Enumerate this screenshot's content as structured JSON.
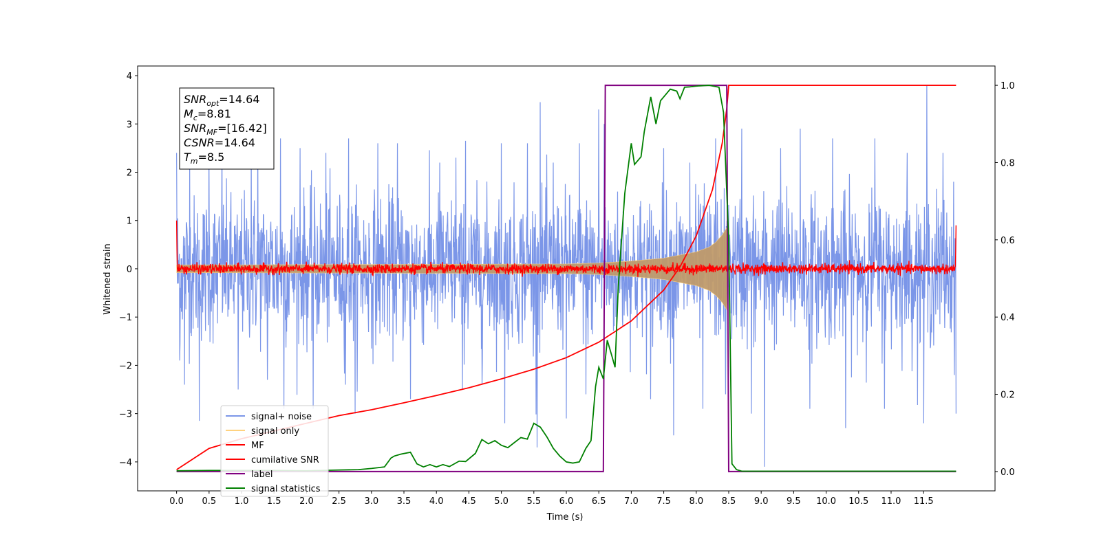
{
  "chart_data": {
    "type": "line",
    "xlabel": "Time (s)",
    "ylabel": "Whitened strain",
    "ylabel_right": "",
    "xlim": [
      -0.6,
      12.6
    ],
    "ylim": [
      -4.6,
      4.2
    ],
    "ylim_right": [
      -0.05,
      1.05
    ],
    "xticks": [
      "0.0",
      "0.5",
      "1.0",
      "1.5",
      "2.0",
      "2.5",
      "3.0",
      "3.5",
      "4.0",
      "4.5",
      "5.0",
      "5.5",
      "6.0",
      "6.5",
      "7.0",
      "7.5",
      "8.0",
      "8.5",
      "9.0",
      "9.5",
      "10.0",
      "10.5",
      "11.0",
      "11.5"
    ],
    "yticks_left": [
      "4",
      "3",
      "2",
      "1",
      "0",
      "−1",
      "−2",
      "−3",
      "−4"
    ],
    "yticks_right": [
      "1.0",
      "0.8",
      "0.6",
      "0.4",
      "0.2",
      "0.0"
    ],
    "annotation": [
      {
        "base": "SNR",
        "sub": "opt",
        "value": "=14.64"
      },
      {
        "base": "M",
        "sub": "c",
        "value": "=8.81"
      },
      {
        "base": "SNR",
        "sub": "MF",
        "value": "=[16.42]"
      },
      {
        "base": "CSNR",
        "sub": "",
        "value": "=14.64"
      },
      {
        "base": "T",
        "sub": "m",
        "value": "=8.5"
      }
    ],
    "legend": {
      "placement": "lower-left",
      "entries": [
        {
          "label": "signal+ noise",
          "color": "#7b96e8"
        },
        {
          "label": "signal only",
          "color": "#ffd27f"
        },
        {
          "label": "MF",
          "color": "#ff0000"
        },
        {
          "label": "cumilative SNR",
          "color": "#ff0000"
        },
        {
          "label": "label",
          "color": "#800080"
        },
        {
          "label": "signal statistics",
          "color": "#008000"
        }
      ]
    },
    "series": [
      {
        "name": "signal+ noise",
        "axis": "left",
        "color": "#7b96e8",
        "x_range": [
          0.0,
          12.0
        ],
        "noise_std": 0.75,
        "peaks": [
          [
            0.0,
            2.4
          ],
          [
            0.05,
            -1.9
          ],
          [
            0.2,
            2.2
          ],
          [
            0.12,
            -2.4
          ],
          [
            0.35,
            -3.15
          ],
          [
            0.5,
            2.6
          ],
          [
            0.7,
            2.7
          ],
          [
            0.95,
            -2.5
          ],
          [
            1.15,
            2.6
          ],
          [
            1.25,
            2.8
          ],
          [
            1.4,
            -2.3
          ],
          [
            1.6,
            2.7
          ],
          [
            1.65,
            -2.9
          ],
          [
            1.9,
            2.5
          ],
          [
            2.1,
            -2.9
          ],
          [
            2.3,
            2.4
          ],
          [
            2.6,
            -2.4
          ],
          [
            2.65,
            2.7
          ],
          [
            2.75,
            -3.0
          ],
          [
            3.1,
            2.6
          ],
          [
            3.4,
            2.6
          ],
          [
            3.6,
            -2.7
          ],
          [
            4.05,
            2.2
          ],
          [
            4.3,
            2.3
          ],
          [
            4.4,
            -2.5
          ],
          [
            4.45,
            2.65
          ],
          [
            4.7,
            -2.4
          ],
          [
            5.0,
            2.6
          ],
          [
            5.05,
            -3.2
          ],
          [
            5.4,
            2.6
          ],
          [
            5.55,
            -3.7
          ],
          [
            5.6,
            3.45
          ],
          [
            5.8,
            2.2
          ],
          [
            6.0,
            -3.1
          ],
          [
            6.2,
            2.6
          ],
          [
            6.3,
            -2.6
          ],
          [
            6.5,
            3.3
          ],
          [
            6.58,
            3.0
          ],
          [
            7.3,
            -2.7
          ],
          [
            7.5,
            2.5
          ],
          [
            7.65,
            -3.45
          ],
          [
            7.9,
            2.2
          ],
          [
            8.1,
            -2.9
          ],
          [
            8.3,
            2.7
          ],
          [
            8.45,
            -2.6
          ],
          [
            8.7,
            2.9
          ],
          [
            8.85,
            -3.0
          ],
          [
            9.05,
            -4.1
          ],
          [
            9.3,
            2.5
          ],
          [
            9.6,
            2.9
          ],
          [
            9.75,
            -2.9
          ],
          [
            10.1,
            2.7
          ],
          [
            10.3,
            -3.3
          ],
          [
            10.75,
            2.7
          ],
          [
            10.9,
            -2.9
          ],
          [
            11.25,
            2.4
          ],
          [
            11.5,
            -3.2
          ],
          [
            11.55,
            3.8
          ],
          [
            11.8,
            2.4
          ],
          [
            12.0,
            -3.0
          ]
        ]
      },
      {
        "name": "signal only",
        "axis": "left",
        "color": "#ffd27f",
        "envelope_x": [
          0.0,
          6.0,
          6.5,
          7.0,
          7.5,
          8.0,
          8.2,
          8.3,
          8.4,
          8.47,
          8.5
        ],
        "envelope_amplitude": [
          0.08,
          0.1,
          0.12,
          0.16,
          0.22,
          0.35,
          0.45,
          0.55,
          0.7,
          0.85,
          0.0
        ]
      },
      {
        "name": "MF",
        "axis": "left",
        "color": "#ff0000",
        "x_range": [
          0.0,
          12.0
        ],
        "noise_std": 0.05,
        "edge_values": [
          [
            0.0,
            1.0
          ],
          [
            12.0,
            0.9
          ]
        ]
      },
      {
        "name": "cumilative SNR",
        "axis": "right",
        "color": "#ff0000",
        "x": [
          0.0,
          0.5,
          1.0,
          1.5,
          2.0,
          2.5,
          3.0,
          3.5,
          4.0,
          4.5,
          5.0,
          5.5,
          6.0,
          6.5,
          7.0,
          7.5,
          7.75,
          8.0,
          8.25,
          8.4,
          8.47,
          8.5,
          12.0
        ],
        "y": [
          0.005,
          0.06,
          0.085,
          0.105,
          0.125,
          0.145,
          0.16,
          0.178,
          0.197,
          0.217,
          0.24,
          0.265,
          0.295,
          0.335,
          0.39,
          0.47,
          0.53,
          0.61,
          0.73,
          0.85,
          0.94,
          1.0,
          1.0
        ]
      },
      {
        "name": "label",
        "axis": "right",
        "color": "#800080",
        "x": [
          0.0,
          6.57,
          6.6,
          8.47,
          8.5,
          12.0
        ],
        "y": [
          0.0,
          0.0,
          1.0,
          1.0,
          0.0,
          0.0
        ]
      },
      {
        "name": "signal statistics",
        "axis": "right",
        "color": "#008000",
        "x": [
          0.0,
          0.5,
          1.0,
          1.5,
          2.0,
          2.5,
          2.8,
          3.0,
          3.2,
          3.3,
          3.35,
          3.45,
          3.6,
          3.7,
          3.8,
          3.9,
          4.0,
          4.1,
          4.2,
          4.35,
          4.45,
          4.6,
          4.7,
          4.8,
          4.9,
          5.0,
          5.1,
          5.2,
          5.3,
          5.4,
          5.5,
          5.6,
          5.7,
          5.8,
          5.9,
          6.0,
          6.1,
          6.2,
          6.3,
          6.38,
          6.45,
          6.5,
          6.57,
          6.63,
          6.7,
          6.75,
          6.8,
          6.9,
          7.0,
          7.05,
          7.15,
          7.2,
          7.3,
          7.38,
          7.45,
          7.6,
          7.7,
          7.75,
          7.82,
          7.9,
          8.0,
          8.2,
          8.35,
          8.42,
          8.5,
          8.55,
          8.62,
          8.7,
          9.0,
          10.0,
          11.0,
          12.0
        ],
        "y": [
          0.002,
          0.003,
          0.003,
          0.003,
          0.002,
          0.004,
          0.005,
          0.008,
          0.012,
          0.035,
          0.04,
          0.045,
          0.05,
          0.02,
          0.012,
          0.018,
          0.012,
          0.018,
          0.013,
          0.027,
          0.026,
          0.047,
          0.083,
          0.072,
          0.08,
          0.068,
          0.062,
          0.075,
          0.088,
          0.084,
          0.125,
          0.115,
          0.09,
          0.06,
          0.04,
          0.025,
          0.022,
          0.025,
          0.06,
          0.08,
          0.22,
          0.27,
          0.24,
          0.34,
          0.3,
          0.27,
          0.48,
          0.72,
          0.85,
          0.795,
          0.815,
          0.88,
          0.97,
          0.9,
          0.96,
          0.99,
          0.985,
          0.965,
          0.995,
          0.996,
          0.998,
          1.0,
          0.995,
          0.93,
          0.6,
          0.02,
          0.005,
          0.001,
          0.001,
          0.001,
          0.001,
          0.001
        ]
      }
    ]
  }
}
